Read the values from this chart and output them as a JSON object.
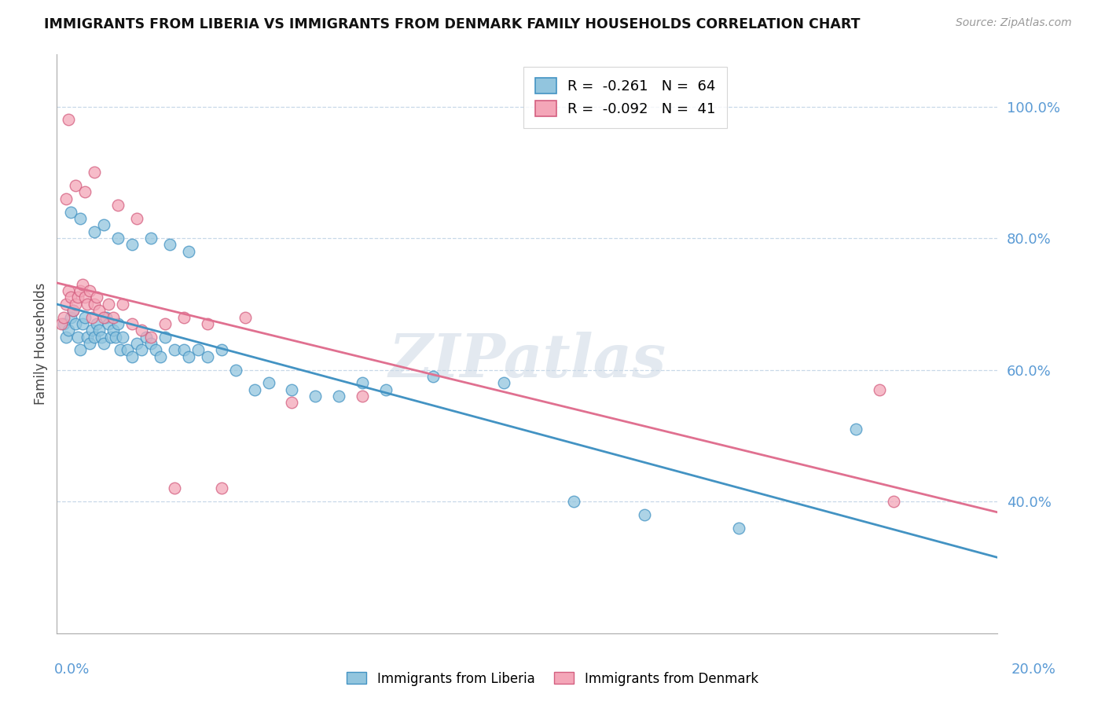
{
  "title": "IMMIGRANTS FROM LIBERIA VS IMMIGRANTS FROM DENMARK FAMILY HOUSEHOLDS CORRELATION CHART",
  "source": "Source: ZipAtlas.com",
  "ylabel": "Family Households",
  "legend_blue_R": "-0.261",
  "legend_blue_N": "64",
  "legend_pink_R": "-0.092",
  "legend_pink_N": "41",
  "color_blue": "#92c5de",
  "color_pink": "#f4a6b8",
  "color_trendline_blue": "#4393c3",
  "color_trendline_pink": "#e07090",
  "color_axis_labels": "#5b9bd5",
  "watermark": "ZIPatlas",
  "xlim": [
    0.0,
    20.0
  ],
  "ylim": [
    20.0,
    108.0
  ],
  "liberia_x": [
    0.15,
    0.2,
    0.25,
    0.3,
    0.35,
    0.4,
    0.45,
    0.5,
    0.55,
    0.6,
    0.65,
    0.7,
    0.75,
    0.8,
    0.85,
    0.9,
    0.95,
    1.0,
    1.05,
    1.1,
    1.15,
    1.2,
    1.25,
    1.3,
    1.35,
    1.4,
    1.5,
    1.6,
    1.7,
    1.8,
    1.9,
    2.0,
    2.1,
    2.2,
    2.3,
    2.5,
    2.7,
    2.8,
    3.0,
    3.2,
    3.5,
    3.8,
    4.2,
    4.5,
    5.0,
    5.5,
    6.0,
    6.5,
    7.0,
    8.0,
    9.5,
    11.0,
    12.5,
    14.5,
    0.3,
    0.5,
    0.8,
    1.0,
    1.3,
    1.6,
    2.0,
    2.4,
    2.8,
    17.0
  ],
  "liberia_y": [
    67.0,
    65.0,
    66.0,
    68.0,
    69.0,
    67.0,
    65.0,
    63.0,
    67.0,
    68.0,
    65.0,
    64.0,
    66.0,
    65.0,
    67.0,
    66.0,
    65.0,
    64.0,
    68.0,
    67.0,
    65.0,
    66.0,
    65.0,
    67.0,
    63.0,
    65.0,
    63.0,
    62.0,
    64.0,
    63.0,
    65.0,
    64.0,
    63.0,
    62.0,
    65.0,
    63.0,
    63.0,
    62.0,
    63.0,
    62.0,
    63.0,
    60.0,
    57.0,
    58.0,
    57.0,
    56.0,
    56.0,
    58.0,
    57.0,
    59.0,
    58.0,
    40.0,
    38.0,
    36.0,
    84.0,
    83.0,
    81.0,
    82.0,
    80.0,
    79.0,
    80.0,
    79.0,
    78.0,
    51.0
  ],
  "denmark_x": [
    0.1,
    0.15,
    0.2,
    0.25,
    0.3,
    0.35,
    0.4,
    0.45,
    0.5,
    0.55,
    0.6,
    0.65,
    0.7,
    0.75,
    0.8,
    0.85,
    0.9,
    1.0,
    1.1,
    1.2,
    1.4,
    1.6,
    1.8,
    2.0,
    2.3,
    2.7,
    3.2,
    4.0,
    5.0,
    6.5,
    0.2,
    0.4,
    0.6,
    0.8,
    1.3,
    1.7,
    2.5,
    3.5,
    17.5,
    17.8,
    0.25
  ],
  "denmark_y": [
    67.0,
    68.0,
    70.0,
    72.0,
    71.0,
    69.0,
    70.0,
    71.0,
    72.0,
    73.0,
    71.0,
    70.0,
    72.0,
    68.0,
    70.0,
    71.0,
    69.0,
    68.0,
    70.0,
    68.0,
    70.0,
    67.0,
    66.0,
    65.0,
    67.0,
    68.0,
    67.0,
    68.0,
    55.0,
    56.0,
    86.0,
    88.0,
    87.0,
    90.0,
    85.0,
    83.0,
    42.0,
    42.0,
    57.0,
    40.0,
    98.0
  ]
}
